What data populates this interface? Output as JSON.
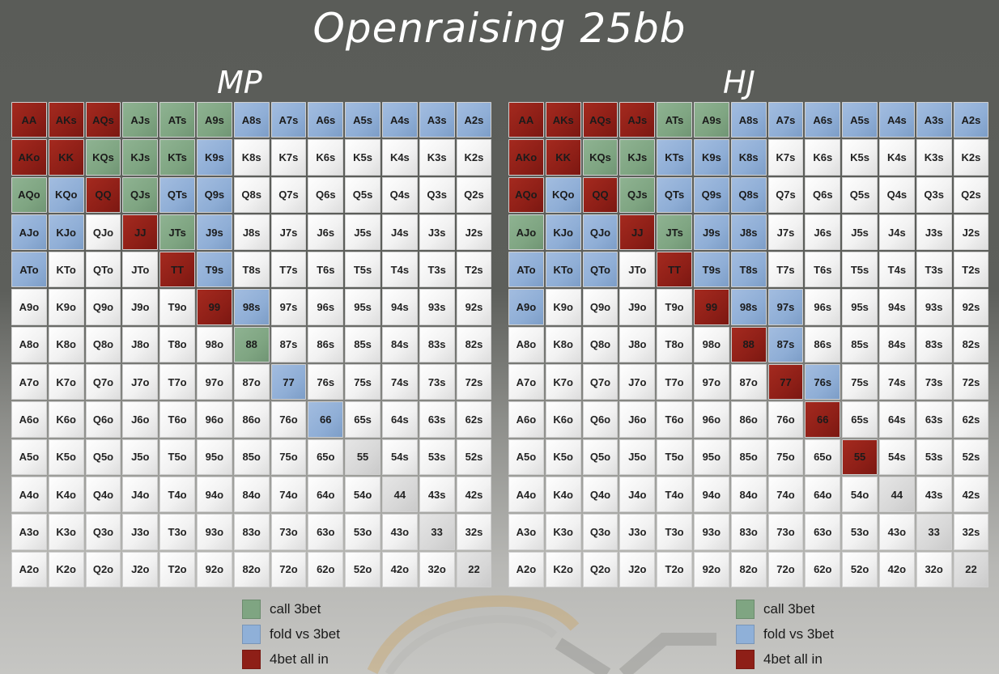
{
  "title": "Openraising 25bb",
  "colors": {
    "call_3bet": "#7fa582",
    "fold_vs_3bet": "#8fb0d8",
    "allin_4bet": "#8e1f17",
    "fold": "#f2f2f2"
  },
  "legend": [
    {
      "key": "c",
      "label": "call 3bet"
    },
    {
      "key": "f",
      "label": "fold vs 3bet"
    },
    {
      "key": "a",
      "label": "4bet all in"
    }
  ],
  "ranks": [
    "A",
    "K",
    "Q",
    "J",
    "T",
    "9",
    "8",
    "7",
    "6",
    "5",
    "4",
    "3",
    "2"
  ],
  "charts": [
    {
      "label": "MP",
      "rows": [
        [
          "AA",
          "AKs",
          "AQs",
          "AJs",
          "ATs",
          "A9s",
          "A8s",
          "A7s",
          "A6s",
          "A5s",
          "A4s",
          "A3s",
          "A2s"
        ],
        [
          "AKo",
          "KK",
          "KQs",
          "KJs",
          "KTs",
          "K9s",
          "K8s",
          "K7s",
          "K6s",
          "K5s",
          "K4s",
          "K3s",
          "K2s"
        ],
        [
          "AQo",
          "KQo",
          "QQ",
          "QJs",
          "QTs",
          "Q9s",
          "Q8s",
          "Q7s",
          "Q6s",
          "Q5s",
          "Q4s",
          "Q3s",
          "Q2s"
        ],
        [
          "AJo",
          "KJo",
          "QJo",
          "JJ",
          "JTs",
          "J9s",
          "J8s",
          "J7s",
          "J6s",
          "J5s",
          "J4s",
          "J3s",
          "J2s"
        ],
        [
          "ATo",
          "KTo",
          "QTo",
          "JTo",
          "TT",
          "T9s",
          "T8s",
          "T7s",
          "T6s",
          "T5s",
          "T4s",
          "T3s",
          "T2s"
        ],
        [
          "A9o",
          "K9o",
          "Q9o",
          "J9o",
          "T9o",
          "99",
          "98s",
          "97s",
          "96s",
          "95s",
          "94s",
          "93s",
          "92s"
        ],
        [
          "A8o",
          "K8o",
          "Q8o",
          "J8o",
          "T8o",
          "98o",
          "88",
          "87s",
          "86s",
          "85s",
          "84s",
          "83s",
          "82s"
        ],
        [
          "A7o",
          "K7o",
          "Q7o",
          "J7o",
          "T7o",
          "97o",
          "87o",
          "77",
          "76s",
          "75s",
          "74s",
          "73s",
          "72s"
        ],
        [
          "A6o",
          "K6o",
          "Q6o",
          "J6o",
          "T6o",
          "96o",
          "86o",
          "76o",
          "66",
          "65s",
          "64s",
          "63s",
          "62s"
        ],
        [
          "A5o",
          "K5o",
          "Q5o",
          "J5o",
          "T5o",
          "95o",
          "85o",
          "75o",
          "65o",
          "55",
          "54s",
          "53s",
          "52s"
        ],
        [
          "A4o",
          "K4o",
          "Q4o",
          "J4o",
          "T4o",
          "94o",
          "84o",
          "74o",
          "64o",
          "54o",
          "44",
          "43s",
          "42s"
        ],
        [
          "A3o",
          "K3o",
          "Q3o",
          "J3o",
          "T3o",
          "93o",
          "83o",
          "73o",
          "63o",
          "53o",
          "43o",
          "33",
          "32s"
        ],
        [
          "A2o",
          "K2o",
          "Q2o",
          "J2o",
          "T2o",
          "92o",
          "82o",
          "72o",
          "62o",
          "52o",
          "42o",
          "32o",
          "22"
        ]
      ],
      "actions": [
        "aaacccfffffff",
        "aacccf-------",
        "cfacff-------",
        "ff-acf-------",
        "f---af-------",
        "-----af------",
        "------c------",
        "-------f-----",
        "--------f----",
        "-------------",
        "-------------",
        "-------------",
        "-------------"
      ]
    },
    {
      "label": "HJ",
      "rows": [
        [
          "AA",
          "AKs",
          "AQs",
          "AJs",
          "ATs",
          "A9s",
          "A8s",
          "A7s",
          "A6s",
          "A5s",
          "A4s",
          "A3s",
          "A2s"
        ],
        [
          "AKo",
          "KK",
          "KQs",
          "KJs",
          "KTs",
          "K9s",
          "K8s",
          "K7s",
          "K6s",
          "K5s",
          "K4s",
          "K3s",
          "K2s"
        ],
        [
          "AQo",
          "KQo",
          "QQ",
          "QJs",
          "QTs",
          "Q9s",
          "Q8s",
          "Q7s",
          "Q6s",
          "Q5s",
          "Q4s",
          "Q3s",
          "Q2s"
        ],
        [
          "AJo",
          "KJo",
          "QJo",
          "JJ",
          "JTs",
          "J9s",
          "J8s",
          "J7s",
          "J6s",
          "J5s",
          "J4s",
          "J3s",
          "J2s"
        ],
        [
          "ATo",
          "KTo",
          "QTo",
          "JTo",
          "TT",
          "T9s",
          "T8s",
          "T7s",
          "T6s",
          "T5s",
          "T4s",
          "T3s",
          "T2s"
        ],
        [
          "A9o",
          "K9o",
          "Q9o",
          "J9o",
          "T9o",
          "99",
          "98s",
          "97s",
          "96s",
          "95s",
          "94s",
          "93s",
          "92s"
        ],
        [
          "A8o",
          "K8o",
          "Q8o",
          "J8o",
          "T8o",
          "98o",
          "88",
          "87s",
          "86s",
          "85s",
          "84s",
          "83s",
          "82s"
        ],
        [
          "A7o",
          "K7o",
          "Q7o",
          "J7o",
          "T7o",
          "97o",
          "87o",
          "77",
          "76s",
          "75s",
          "74s",
          "73s",
          "72s"
        ],
        [
          "A6o",
          "K6o",
          "Q6o",
          "J6o",
          "T6o",
          "96o",
          "86o",
          "76o",
          "66",
          "65s",
          "64s",
          "63s",
          "62s"
        ],
        [
          "A5o",
          "K5o",
          "Q5o",
          "J5o",
          "T5o",
          "95o",
          "85o",
          "75o",
          "65o",
          "55",
          "54s",
          "53s",
          "52s"
        ],
        [
          "A4o",
          "K4o",
          "Q4o",
          "J4o",
          "T4o",
          "94o",
          "84o",
          "74o",
          "64o",
          "54o",
          "44",
          "43s",
          "42s"
        ],
        [
          "A3o",
          "K3o",
          "Q3o",
          "J3o",
          "T3o",
          "93o",
          "83o",
          "73o",
          "63o",
          "53o",
          "43o",
          "33",
          "32s"
        ],
        [
          "A2o",
          "K2o",
          "Q2o",
          "J2o",
          "T2o",
          "92o",
          "82o",
          "72o",
          "62o",
          "52o",
          "42o",
          "32o",
          "22"
        ]
      ],
      "actions": [
        "aaaaccfffffff",
        "aaccfff------",
        "afacfff------",
        "cffacff------",
        "fff-aff------",
        "f----aff-----",
        "------af-----",
        "-------af----",
        "--------a----",
        "---------a---",
        "-------------",
        "-------------",
        "-------------"
      ]
    }
  ]
}
